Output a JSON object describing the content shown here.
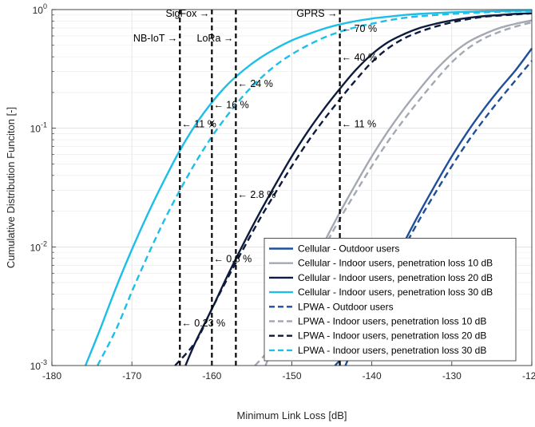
{
  "chart_data": {
    "type": "line",
    "xlabel": "Minimum Link Loss [dB]",
    "ylabel": "Cumulative Distribution Funciton [-]",
    "xlim": [
      -180,
      -120
    ],
    "ylim": [
      0.001,
      1
    ],
    "yscale": "log",
    "grid": true,
    "x_ticks": [
      -180,
      -170,
      -160,
      -150,
      -140,
      -130,
      -120
    ],
    "x_tick_labels": [
      "-180",
      "-170",
      "-160",
      "-150",
      "-140",
      "-130",
      "-120"
    ],
    "y_ticks": [
      0.001,
      0.01,
      0.1,
      1
    ],
    "y_tick_labels": [
      {
        "base": "10",
        "exp": "-3"
      },
      {
        "base": "10",
        "exp": "-2"
      },
      {
        "base": "10",
        "exp": "-1"
      },
      {
        "base": "10",
        "exp": "0"
      }
    ],
    "legend_position": "bottom-right",
    "colors": {
      "outdoor": "#1f4e9a",
      "indoor10": "#a3a8b3",
      "indoor20": "#0e1b3d",
      "indoor30": "#1cbfe8",
      "marker": "#000000"
    },
    "series": [
      {
        "name": "Cellular - Outdoor users",
        "style": "solid",
        "color_key": "outdoor",
        "x": [
          -143.3,
          -142,
          -140,
          -138,
          -136,
          -134,
          -132,
          -130,
          -128,
          -126,
          -124,
          -122,
          -120
        ],
        "y": [
          0.001,
          0.0016,
          0.003,
          0.0058,
          0.0108,
          0.0195,
          0.034,
          0.058,
          0.094,
          0.145,
          0.215,
          0.31,
          0.47
        ]
      },
      {
        "name": "Cellular - Indoor users, penetration loss 10 dB",
        "style": "solid",
        "color_key": "indoor10",
        "x": [
          -153.3,
          -152,
          -150,
          -148,
          -146,
          -144,
          -142,
          -140,
          -138,
          -136,
          -134,
          -132,
          -130,
          -128,
          -126,
          -124,
          -122,
          -120
        ],
        "y": [
          0.001,
          0.0016,
          0.003,
          0.0058,
          0.0108,
          0.0195,
          0.034,
          0.058,
          0.094,
          0.145,
          0.215,
          0.31,
          0.42,
          0.53,
          0.62,
          0.7,
          0.76,
          0.81
        ]
      },
      {
        "name": "Cellular - Indoor users, penetration loss 20 dB",
        "style": "solid",
        "color_key": "indoor20",
        "x": [
          -163.3,
          -162,
          -160,
          -158,
          -156,
          -154,
          -152,
          -150,
          -148,
          -146,
          -144,
          -142,
          -140,
          -138,
          -136,
          -134,
          -132,
          -130,
          -128,
          -126,
          -124,
          -122,
          -120
        ],
        "y": [
          0.001,
          0.0016,
          0.003,
          0.0058,
          0.0108,
          0.0195,
          0.034,
          0.058,
          0.094,
          0.145,
          0.215,
          0.31,
          0.42,
          0.53,
          0.62,
          0.7,
          0.76,
          0.81,
          0.85,
          0.88,
          0.9,
          0.92,
          0.93
        ]
      },
      {
        "name": "Cellular - Indoor users, penetration loss 30 dB",
        "style": "solid",
        "color_key": "indoor30",
        "x": [
          -175.8,
          -174,
          -172,
          -170,
          -168,
          -166,
          -164,
          -162,
          -160,
          -158,
          -156,
          -154,
          -152,
          -150,
          -148,
          -146,
          -144,
          -142,
          -140,
          -138,
          -136,
          -134,
          -132,
          -130,
          -128,
          -126,
          -124,
          -122,
          -120
        ],
        "y": [
          0.001,
          0.002,
          0.0045,
          0.0095,
          0.019,
          0.036,
          0.065,
          0.108,
          0.165,
          0.235,
          0.31,
          0.39,
          0.47,
          0.55,
          0.62,
          0.69,
          0.75,
          0.8,
          0.84,
          0.87,
          0.9,
          0.92,
          0.935,
          0.948,
          0.958,
          0.966,
          0.972,
          0.977,
          0.981
        ]
      },
      {
        "name": "LPWA - Outdoor users",
        "style": "dashed",
        "color_key": "outdoor",
        "x": [
          -144.6,
          -142,
          -140,
          -138,
          -136,
          -134,
          -132,
          -130,
          -128,
          -126,
          -124,
          -122,
          -120
        ],
        "y": [
          0.001,
          0.0016,
          0.003,
          0.0055,
          0.0098,
          0.0172,
          0.029,
          0.048,
          0.077,
          0.118,
          0.175,
          0.255,
          0.37
        ]
      },
      {
        "name": "LPWA - Indoor users, penetration loss 10 dB",
        "style": "dashed",
        "color_key": "indoor10",
        "x": [
          -154.6,
          -152,
          -150,
          -148,
          -146,
          -144,
          -142,
          -140,
          -138,
          -136,
          -134,
          -132,
          -130,
          -128,
          -126,
          -124,
          -122,
          -120
        ],
        "y": [
          0.001,
          0.0016,
          0.003,
          0.0055,
          0.0098,
          0.0172,
          0.029,
          0.048,
          0.077,
          0.118,
          0.175,
          0.255,
          0.36,
          0.47,
          0.57,
          0.65,
          0.72,
          0.78
        ]
      },
      {
        "name": "LPWA - Indoor users, penetration loss 20 dB",
        "style": "dashed",
        "color_key": "indoor20",
        "x": [
          -164.6,
          -162,
          -160,
          -158,
          -156,
          -154,
          -152,
          -150,
          -148,
          -146,
          -144,
          -142,
          -140,
          -138,
          -136,
          -134,
          -132,
          -130,
          -128,
          -126,
          -124,
          -122,
          -120
        ],
        "y": [
          0.001,
          0.0016,
          0.003,
          0.0055,
          0.0098,
          0.0172,
          0.029,
          0.048,
          0.077,
          0.118,
          0.175,
          0.255,
          0.36,
          0.47,
          0.57,
          0.65,
          0.72,
          0.78,
          0.83,
          0.87,
          0.89,
          0.91,
          0.93
        ]
      },
      {
        "name": "LPWA - Indoor users, penetration loss 30 dB",
        "style": "dashed",
        "color_key": "indoor30",
        "x": [
          -174.3,
          -172,
          -170,
          -168,
          -166,
          -164,
          -162,
          -160,
          -158,
          -156,
          -154,
          -152,
          -150,
          -148,
          -146,
          -144,
          -142,
          -140,
          -138,
          -136,
          -134,
          -132,
          -130,
          -128,
          -126,
          -124,
          -122,
          -120
        ],
        "y": [
          0.001,
          0.002,
          0.0042,
          0.0085,
          0.0165,
          0.03,
          0.052,
          0.085,
          0.13,
          0.19,
          0.26,
          0.34,
          0.42,
          0.5,
          0.58,
          0.65,
          0.71,
          0.76,
          0.81,
          0.85,
          0.88,
          0.9,
          0.92,
          0.935,
          0.948,
          0.958,
          0.966,
          0.972
        ]
      }
    ],
    "vertical_markers": [
      {
        "x": -164,
        "label": "NB-IoT →",
        "label_row": 2
      },
      {
        "x": -160,
        "label": "SigFox →",
        "label_row": 1
      },
      {
        "x": -157,
        "label": "LoRa →",
        "label_row": 2
      },
      {
        "x": -144,
        "label": "GPRS →",
        "label_row": 1
      }
    ],
    "annotations": [
      {
        "x": -164,
        "y": 0.0023,
        "text": "← 0.23 %"
      },
      {
        "x": -164,
        "y": 0.11,
        "text": "← 11 %"
      },
      {
        "x": -160,
        "y": 0.008,
        "text": "← 0.8 %"
      },
      {
        "x": -160,
        "y": 0.16,
        "text": "← 16 %"
      },
      {
        "x": -157,
        "y": 0.028,
        "text": "← 2.8 %"
      },
      {
        "x": -157,
        "y": 0.24,
        "text": "← 24 %"
      },
      {
        "x": -144,
        "y": 0.11,
        "text": "← 11 %"
      },
      {
        "x": -144,
        "y": 0.4,
        "text": "← 40 %"
      },
      {
        "x": -144,
        "y": 0.7,
        "text": "← 70 %"
      }
    ]
  }
}
